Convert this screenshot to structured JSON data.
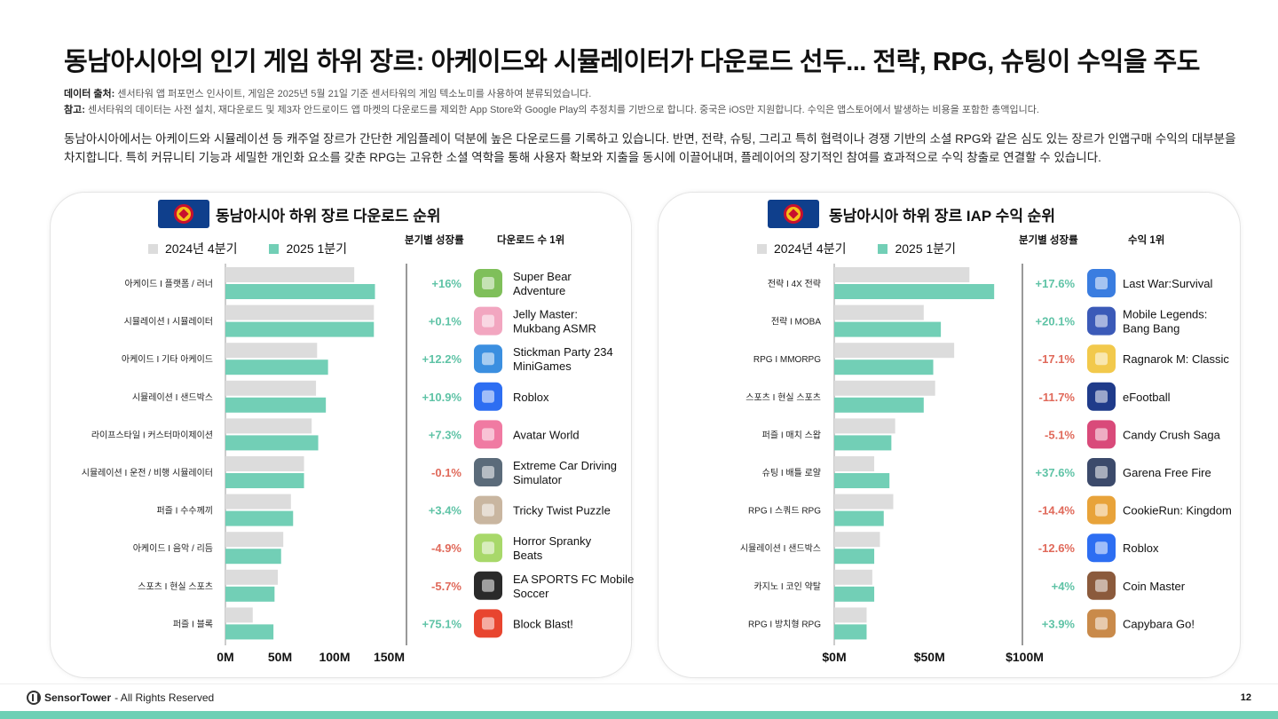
{
  "page": {
    "title": "동남아시아의 인기 게임 하위 장르: 아케이드와 시뮬레이터가 다운로드 선두... 전략, RPG, 슈팅이 수익을 주도",
    "note1_label": "데이터 출처:",
    "note1_text": " 센서타워 앱 퍼포먼스 인사이트, 게임은 2025년 5월 21일 기준 센서타워의 게임 텍소노미를 사용하여 분류되었습니다.",
    "note2_label": "참고:",
    "note2_text": " 센서타워의 데이터는 사전 설치, 재다운로드 및 제3자 안드로이드 앱 마켓의 다운로드를 제외한 App Store와 Google Play의 추정치를 기반으로 합니다. 중국은 iOS만 지원합니다. 수익은 앱스토어에서 발생하는 비용을 포함한 총액입니다.",
    "description": "동남아시아에서는 아케이드와 시뮬레이션 등 캐주얼 장르가 간단한 게임플레이 덕분에 높은 다운로드를 기록하고 있습니다. 반면, 전략, 슈팅, 그리고 특히 협력이나 경쟁 기반의 소셜 RPG와 같은 심도 있는 장르가 인앱구매 수익의 대부분을 차지합니다. 특히 커뮤니티 기능과 세밀한 개인화 요소를 갖춘 RPG는 고유한 소셜 역학을 통해 사용자 확보와 지출을 동시에 이끌어내며, 플레이어의 장기적인 참여를 효과적으로 수익 창출로 연결할 수 있습니다.",
    "footer_brand": "SensorTower",
    "footer_text": " - All Rights Reserved",
    "page_number": "12"
  },
  "colors": {
    "q4_2024": "#dcdcdc",
    "q1_2025": "#72cfb6",
    "positive": "#5fc3a6",
    "negative": "#e0695a"
  },
  "chart_data": [
    {
      "type": "bar",
      "orientation": "horizontal",
      "title": "동남아시아 하위 장르 다운로드 순위",
      "growth_header": "분기별 성장률",
      "top_header": "다운로드 수 1위",
      "categories": [
        "아케이드 I 플랫폼 / 러너",
        "시뮬레이션 I 시뮬레이터",
        "아케이드 I 기타 아케이드",
        "시뮬레이션 I 샌드박스",
        "라이프스타일 I 커스터마이제이션",
        "시뮬레이션 I 운전 / 비행 시뮬레이터",
        "퍼즐 I 수수께끼",
        "아케이드 I 음악 / 리듬",
        "스포츠 I 현실 스포츠",
        "퍼즐 I 블록"
      ],
      "series": [
        {
          "name": "2024년 4분기",
          "values": [
            118,
            136,
            84,
            83,
            79,
            72,
            60,
            53,
            48,
            25
          ]
        },
        {
          "name": "2025 1분기",
          "values": [
            137,
            136,
            94,
            92,
            85,
            72,
            62,
            51,
            45,
            44
          ]
        }
      ],
      "xticks": [
        "0M",
        "50M",
        "100M",
        "150M"
      ],
      "xlim": [
        0,
        150
      ],
      "unit": "M",
      "growth": [
        "+16%",
        "+0.1%",
        "+12.2%",
        "+10.9%",
        "+7.3%",
        "-0.1%",
        "+3.4%",
        "-4.9%",
        "-5.7%",
        "+75.1%"
      ],
      "top_apps": [
        "Super Bear Adventure",
        "Jelly Master: Mukbang ASMR",
        "Stickman Party 234 MiniGames",
        "Roblox",
        "Avatar World",
        "Extreme Car Driving Simulator",
        "Tricky Twist Puzzle",
        "Horror Spranky Beats",
        "EA SPORTS FC Mobile Soccer",
        "Block Blast!"
      ],
      "app_icons": [
        "bear-icon",
        "jelly-icon",
        "stickman-icon",
        "roblox-icon",
        "avatar-icon",
        "car-icon",
        "puzzle-icon",
        "spranky-icon",
        "soccer-icon",
        "block-icon"
      ],
      "icon_colors": [
        "#7fbf5a",
        "#f2a6c0",
        "#3b8fe0",
        "#2d6ef2",
        "#f07aa2",
        "#5b6b7a",
        "#c9b6a0",
        "#a8d86a",
        "#2a2a2a",
        "#e8452f"
      ]
    },
    {
      "type": "bar",
      "orientation": "horizontal",
      "title": "동남아시아 하위 장르 IAP 수익 순위",
      "growth_header": "분기별 성장률",
      "top_header": "수익 1위",
      "categories": [
        "전략 I 4X 전략",
        "전략 I MOBA",
        "RPG I MMORPG",
        "스포츠 I 현실 스포츠",
        "퍼즐 I 매치 스왑",
        "슈팅 I 배틀 로얄",
        "RPG I 스쿼드 RPG",
        "시뮬레이션 I 샌드박스",
        "카지노 I 코인 약탈",
        "RPG I 방치형 RPG"
      ],
      "series": [
        {
          "name": "2024년 4분기",
          "values": [
            71,
            47,
            63,
            53,
            32,
            21,
            31,
            24,
            20,
            17
          ]
        },
        {
          "name": "2025 1분기",
          "values": [
            84,
            56,
            52,
            47,
            30,
            29,
            26,
            21,
            21,
            17
          ]
        }
      ],
      "xticks": [
        "$0M",
        "$50M",
        "$100M"
      ],
      "xlim": [
        0,
        100
      ],
      "unit": "$M",
      "growth": [
        "+17.6%",
        "+20.1%",
        "-17.1%",
        "-11.7%",
        "-5.1%",
        "+37.6%",
        "-14.4%",
        "-12.6%",
        "+4%",
        "+3.9%"
      ],
      "top_apps": [
        "Last War:Survival",
        "Mobile Legends: Bang Bang",
        "Ragnarok M: Classic",
        "eFootball",
        "Candy Crush Saga",
        "Garena Free Fire",
        "CookieRun: Kingdom",
        "Roblox",
        "Coin Master",
        "Capybara Go!"
      ],
      "app_icons": [
        "lastwar-icon",
        "mlbb-icon",
        "ragnarok-icon",
        "efootball-icon",
        "candy-icon",
        "freefire-icon",
        "cookie-icon",
        "roblox-icon",
        "coinmaster-icon",
        "capybara-icon"
      ],
      "icon_colors": [
        "#3a7de0",
        "#3b5ab8",
        "#f2c94c",
        "#1f3b8a",
        "#d94a7a",
        "#3c4a6b",
        "#e8a33a",
        "#2d6ef2",
        "#8b5a3c",
        "#c98a4a"
      ]
    }
  ]
}
